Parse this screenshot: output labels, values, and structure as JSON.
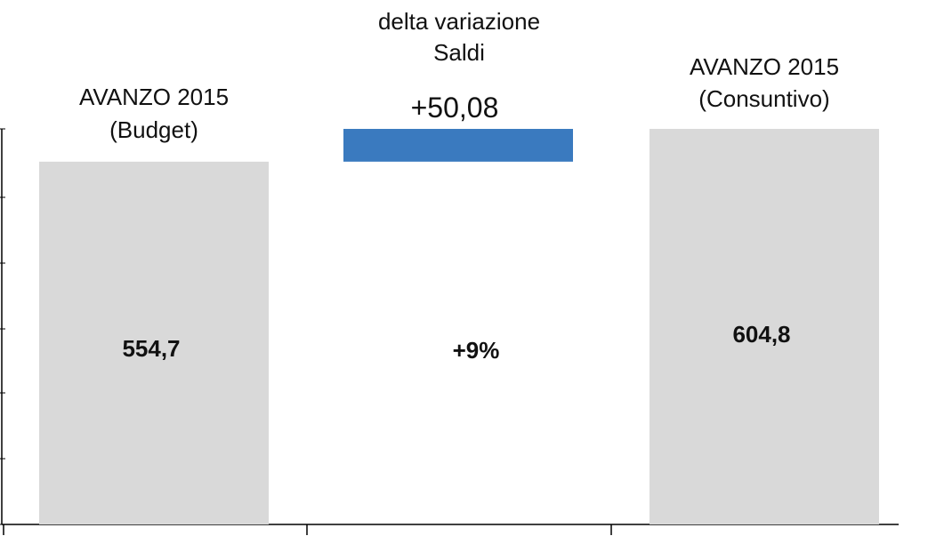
{
  "chart_data": {
    "type": "bar",
    "subtype": "waterfall",
    "categories": [
      {
        "line1": "AVANZO 2015",
        "line2": "(Budget)"
      },
      {
        "line1": "delta variazione",
        "line2": "Saldi"
      },
      {
        "line1": "AVANZO 2015",
        "line2": "(Consuntivo)"
      }
    ],
    "values": [
      554.7,
      50.08,
      604.8
    ],
    "value_labels": [
      "554,7",
      "+50,08",
      "604,8"
    ],
    "percent_label": "+9%",
    "ylim": [
      0,
      604.8
    ],
    "grid": false,
    "legend": "none",
    "colors": {
      "total": "#d9d9d9",
      "delta": "#3a7abf",
      "axis": "#000000"
    }
  }
}
